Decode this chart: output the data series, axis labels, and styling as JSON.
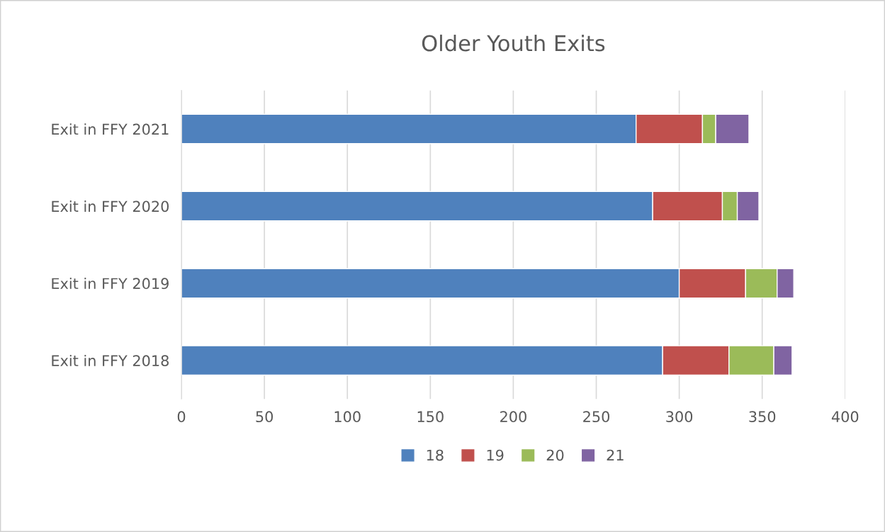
{
  "chart_data": {
    "type": "bar",
    "title": "Older Youth Exits",
    "orientation": "horizontal",
    "stacked": true,
    "categories": [
      "Exit in FFY 2021",
      "Exit in FFY 2020",
      "Exit in FFY 2019",
      "Exit in FFY 2018"
    ],
    "series": [
      {
        "name": "18",
        "color": "#4f81bd",
        "values": [
          274,
          284,
          300,
          290
        ]
      },
      {
        "name": "19",
        "color": "#c0504d",
        "values": [
          40,
          42,
          40,
          40
        ]
      },
      {
        "name": "20",
        "color": "#9bbb59",
        "values": [
          8,
          9,
          19,
          27
        ]
      },
      {
        "name": "21",
        "color": "#8064a2",
        "values": [
          20,
          13,
          10,
          11
        ]
      }
    ],
    "xlim": [
      0,
      400
    ],
    "xticks": [
      0,
      50,
      100,
      150,
      200,
      250,
      300,
      350,
      400
    ],
    "grid": "x",
    "legend": "bottom"
  }
}
